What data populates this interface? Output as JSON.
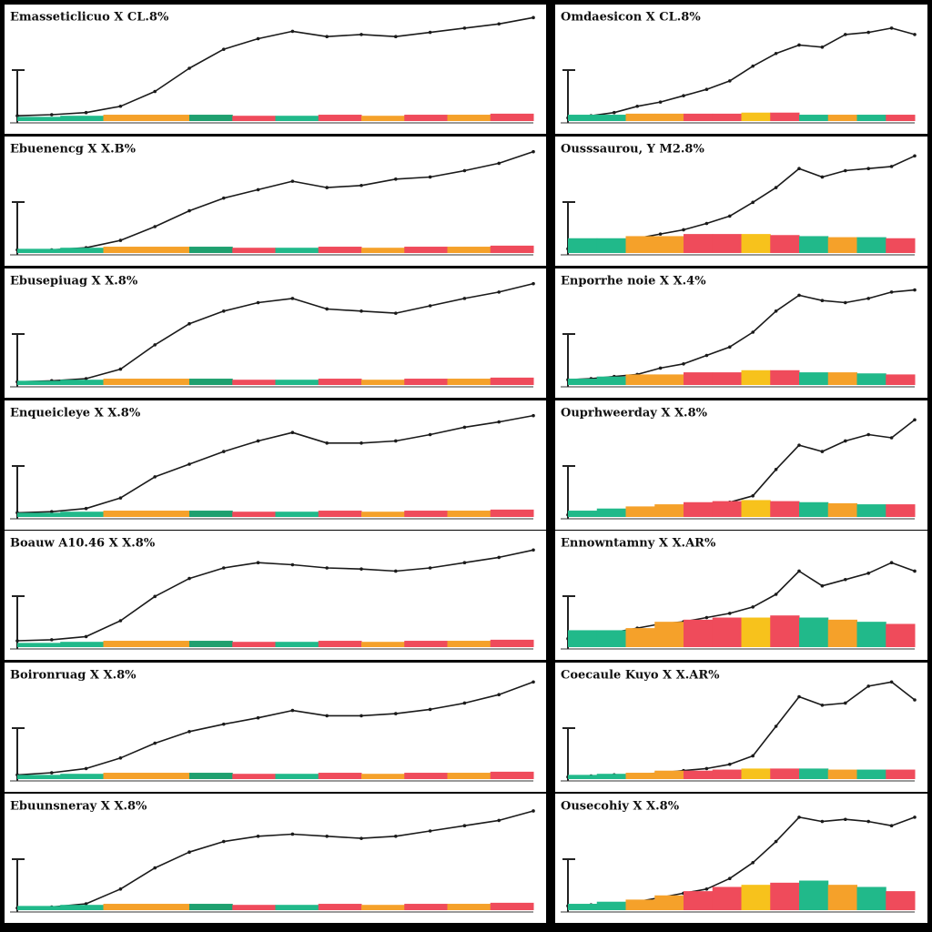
{
  "chart_data": [
    {
      "type": "line-bar",
      "title": "Emasseticlicuo X CL.8%",
      "ylim": [
        0,
        100
      ],
      "series": [
        {
          "color": "#1a1a1a",
          "values": [
            5,
            6,
            8,
            14,
            28,
            50,
            68,
            78,
            85,
            80,
            82,
            80,
            84,
            88,
            92,
            98
          ]
        },
        {
          "type": "bar",
          "colors": [
            "#21b98a",
            "#21b98a",
            "#f5a12a",
            "#f5a12a",
            "#1fa06f",
            "#ef4b5b",
            "#21b98a",
            "#ef4b5b",
            "#f5a12a",
            "#ef4b5b",
            "#f5a12a",
            "#ef4b5b"
          ],
          "values": [
            4,
            5,
            6,
            6,
            6,
            5,
            5,
            6,
            5,
            6,
            6,
            7
          ]
        }
      ]
    },
    {
      "type": "line-bar",
      "title": "Omdaesicon X CL.8%",
      "ylim": [
        0,
        100
      ],
      "series": [
        {
          "color": "#1a1a1a",
          "values": [
            3,
            5,
            8,
            14,
            18,
            24,
            30,
            38,
            52,
            64,
            72,
            70,
            82,
            84,
            88,
            82
          ]
        },
        {
          "type": "bar",
          "colors": [
            "#21b98a",
            "#21b98a",
            "#f5a12a",
            "#f5a12a",
            "#ef4b5b",
            "#ef4b5b",
            "#f7c21c",
            "#ef4b5b",
            "#21b98a",
            "#f5a12a",
            "#21b98a",
            "#ef4b5b"
          ],
          "values": [
            6,
            6,
            7,
            7,
            7,
            7,
            8,
            8,
            6,
            6,
            6,
            6
          ]
        }
      ]
    },
    {
      "type": "line-bar",
      "title": "Ebuenencg X X.B%",
      "ylim": [
        0,
        100
      ],
      "series": [
        {
          "color": "#1a1a1a",
          "values": [
            3,
            3,
            5,
            12,
            25,
            40,
            52,
            60,
            68,
            62,
            64,
            70,
            72,
            78,
            85,
            96
          ]
        },
        {
          "type": "bar",
          "colors": [
            "#21b98a",
            "#21b98a",
            "#f5a12a",
            "#f5a12a",
            "#1fa06f",
            "#ef4b5b",
            "#21b98a",
            "#ef4b5b",
            "#f5a12a",
            "#ef4b5b",
            "#f5a12a",
            "#ef4b5b"
          ],
          "values": [
            4,
            5,
            6,
            6,
            6,
            5,
            5,
            6,
            5,
            6,
            6,
            7
          ]
        }
      ]
    },
    {
      "type": "line-bar",
      "title": "Ousssaurou, Y M2.8%",
      "ylim": [
        0,
        100
      ],
      "series": [
        {
          "color": "#1a1a1a",
          "values": [
            4,
            6,
            8,
            14,
            18,
            22,
            28,
            35,
            48,
            62,
            80,
            72,
            78,
            80,
            82,
            92
          ]
        },
        {
          "type": "bar",
          "colors": [
            "#21b98a",
            "#21b98a",
            "#f5a12a",
            "#f5a12a",
            "#ef4b5b",
            "#ef4b5b",
            "#f7c21c",
            "#ef4b5b",
            "#21b98a",
            "#f5a12a",
            "#21b98a",
            "#ef4b5b"
          ],
          "values": [
            14,
            14,
            16,
            16,
            18,
            18,
            18,
            17,
            16,
            15,
            15,
            14
          ]
        }
      ]
    },
    {
      "type": "line-bar",
      "title": "Ebusepiuag X X.8%",
      "ylim": [
        0,
        100
      ],
      "series": [
        {
          "color": "#1a1a1a",
          "values": [
            3,
            4,
            6,
            15,
            38,
            58,
            70,
            78,
            82,
            72,
            70,
            68,
            75,
            82,
            88,
            96
          ]
        },
        {
          "type": "bar",
          "colors": [
            "#21b98a",
            "#21b98a",
            "#f5a12a",
            "#f5a12a",
            "#1fa06f",
            "#ef4b5b",
            "#21b98a",
            "#ef4b5b",
            "#f5a12a",
            "#ef4b5b",
            "#f5a12a",
            "#ef4b5b"
          ],
          "values": [
            4,
            5,
            6,
            6,
            6,
            5,
            5,
            6,
            5,
            6,
            6,
            7
          ]
        }
      ]
    },
    {
      "type": "line-bar",
      "title": "Enporrhe noie X X.4%",
      "ylim": [
        0,
        100
      ],
      "series": [
        {
          "color": "#1a1a1a",
          "values": [
            5,
            6,
            8,
            10,
            16,
            20,
            28,
            36,
            50,
            70,
            85,
            80,
            78,
            82,
            88,
            90
          ]
        },
        {
          "type": "bar",
          "colors": [
            "#21b98a",
            "#21b98a",
            "#f5a12a",
            "#f5a12a",
            "#ef4b5b",
            "#ef4b5b",
            "#f7c21c",
            "#ef4b5b",
            "#21b98a",
            "#f5a12a",
            "#21b98a",
            "#ef4b5b"
          ],
          "values": [
            6,
            8,
            10,
            10,
            12,
            12,
            14,
            14,
            12,
            12,
            11,
            10
          ]
        }
      ]
    },
    {
      "type": "line-bar",
      "title": "Enqueicleye X X.8%",
      "ylim": [
        0,
        100
      ],
      "series": [
        {
          "color": "#1a1a1a",
          "values": [
            4,
            5,
            8,
            18,
            38,
            50,
            62,
            72,
            80,
            70,
            70,
            72,
            78,
            85,
            90,
            96
          ]
        },
        {
          "type": "bar",
          "colors": [
            "#21b98a",
            "#21b98a",
            "#f5a12a",
            "#f5a12a",
            "#1fa06f",
            "#ef4b5b",
            "#21b98a",
            "#ef4b5b",
            "#f5a12a",
            "#ef4b5b",
            "#f5a12a",
            "#ef4b5b"
          ],
          "values": [
            4,
            5,
            6,
            6,
            6,
            5,
            5,
            6,
            5,
            6,
            6,
            7
          ]
        }
      ]
    },
    {
      "type": "line-bar",
      "title": "Ouprhweerday X X.8%",
      "ylim": [
        0,
        100
      ],
      "series": [
        {
          "color": "#1a1a1a",
          "values": [
            2,
            3,
            4,
            5,
            6,
            8,
            10,
            14,
            20,
            45,
            68,
            62,
            72,
            78,
            75,
            92
          ]
        },
        {
          "type": "bar",
          "colors": [
            "#21b98a",
            "#21b98a",
            "#f5a12a",
            "#f5a12a",
            "#ef4b5b",
            "#ef4b5b",
            "#f7c21c",
            "#ef4b5b",
            "#21b98a",
            "#f5a12a",
            "#21b98a",
            "#ef4b5b"
          ],
          "values": [
            6,
            8,
            10,
            12,
            14,
            15,
            16,
            15,
            14,
            13,
            12,
            12
          ]
        }
      ]
    },
    {
      "type": "line-bar",
      "title": "Boauw A10.46 X X.8%",
      "ylim": [
        0,
        100
      ],
      "series": [
        {
          "color": "#1a1a1a",
          "values": [
            6,
            7,
            10,
            25,
            48,
            65,
            75,
            80,
            78,
            75,
            74,
            72,
            75,
            80,
            85,
            92
          ]
        },
        {
          "type": "bar",
          "colors": [
            "#21b98a",
            "#21b98a",
            "#f5a12a",
            "#f5a12a",
            "#1fa06f",
            "#ef4b5b",
            "#21b98a",
            "#ef4b5b",
            "#f5a12a",
            "#ef4b5b",
            "#f5a12a",
            "#ef4b5b"
          ],
          "values": [
            4,
            5,
            6,
            6,
            6,
            5,
            5,
            6,
            5,
            6,
            6,
            7
          ]
        }
      ]
    },
    {
      "type": "line-bar",
      "title": "Ennowntamny X X.AR%",
      "ylim": [
        0,
        100
      ],
      "series": [
        {
          "color": "#1a1a1a",
          "values": [
            8,
            10,
            14,
            18,
            22,
            24,
            28,
            32,
            38,
            50,
            72,
            58,
            64,
            70,
            80,
            72
          ]
        },
        {
          "type": "bar",
          "colors": [
            "#21b98a",
            "#21b98a",
            "#f5a12a",
            "#f5a12a",
            "#ef4b5b",
            "#ef4b5b",
            "#f7c21c",
            "#ef4b5b",
            "#21b98a",
            "#f5a12a",
            "#21b98a",
            "#ef4b5b"
          ],
          "values": [
            16,
            16,
            18,
            24,
            26,
            28,
            28,
            30,
            28,
            26,
            24,
            22
          ]
        }
      ]
    },
    {
      "type": "line-bar",
      "title": "Boironruag X X.8%",
      "ylim": [
        0,
        100
      ],
      "series": [
        {
          "color": "#1a1a1a",
          "values": [
            4,
            6,
            10,
            20,
            34,
            45,
            52,
            58,
            65,
            60,
            60,
            62,
            66,
            72,
            80,
            92
          ]
        },
        {
          "type": "bar",
          "colors": [
            "#21b98a",
            "#21b98a",
            "#f5a12a",
            "#f5a12a",
            "#1fa06f",
            "#ef4b5b",
            "#21b98a",
            "#ef4b5b",
            "#f5a12a",
            "#ef4b5b",
            "#f5a12a",
            "#ef4b5b"
          ],
          "values": [
            4,
            5,
            6,
            6,
            6,
            5,
            5,
            6,
            5,
            6,
            6,
            7
          ]
        }
      ]
    },
    {
      "type": "line-bar",
      "title": "Coecaule Kuyo X X.AR%",
      "ylim": [
        0,
        100
      ],
      "series": [
        {
          "color": "#1a1a1a",
          "values": [
            2,
            3,
            4,
            4,
            6,
            8,
            10,
            14,
            22,
            50,
            78,
            70,
            72,
            88,
            92,
            75
          ]
        },
        {
          "type": "bar",
          "colors": [
            "#21b98a",
            "#21b98a",
            "#f5a12a",
            "#f5a12a",
            "#ef4b5b",
            "#ef4b5b",
            "#f7c21c",
            "#ef4b5b",
            "#21b98a",
            "#f5a12a",
            "#21b98a",
            "#ef4b5b"
          ],
          "values": [
            4,
            5,
            6,
            8,
            8,
            9,
            10,
            10,
            10,
            9,
            9,
            9
          ]
        }
      ]
    },
    {
      "type": "line-bar",
      "title": "Ebuunsneray X X.8%",
      "ylim": [
        0,
        100
      ],
      "series": [
        {
          "color": "#1a1a1a",
          "values": [
            2,
            3,
            6,
            20,
            40,
            55,
            65,
            70,
            72,
            70,
            68,
            70,
            75,
            80,
            85,
            94
          ]
        },
        {
          "type": "bar",
          "colors": [
            "#21b98a",
            "#21b98a",
            "#f5a12a",
            "#f5a12a",
            "#1fa06f",
            "#ef4b5b",
            "#21b98a",
            "#ef4b5b",
            "#f5a12a",
            "#ef4b5b",
            "#f5a12a",
            "#ef4b5b"
          ],
          "values": [
            4,
            5,
            6,
            6,
            6,
            5,
            5,
            6,
            5,
            6,
            6,
            7
          ]
        }
      ]
    },
    {
      "type": "line-bar",
      "title": "Ousecohiy X X.8%",
      "ylim": [
        0,
        100
      ],
      "series": [
        {
          "color": "#1a1a1a",
          "values": [
            4,
            5,
            6,
            8,
            12,
            16,
            20,
            30,
            45,
            65,
            88,
            84,
            86,
            84,
            80,
            88
          ]
        },
        {
          "type": "bar",
          "colors": [
            "#21b98a",
            "#21b98a",
            "#f5a12a",
            "#f5a12a",
            "#ef4b5b",
            "#ef4b5b",
            "#f7c21c",
            "#ef4b5b",
            "#21b98a",
            "#f5a12a",
            "#21b98a",
            "#ef4b5b"
          ],
          "values": [
            6,
            8,
            10,
            14,
            18,
            22,
            24,
            26,
            28,
            24,
            22,
            18
          ]
        }
      ]
    }
  ]
}
